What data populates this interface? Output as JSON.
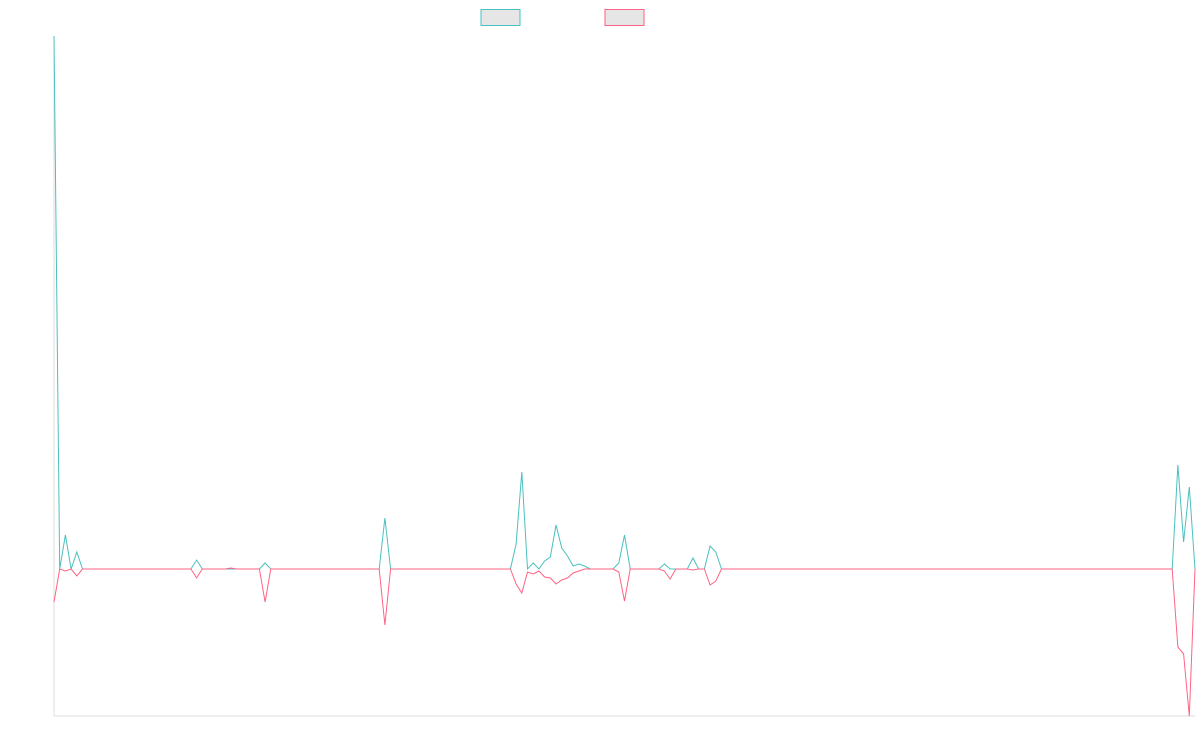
{
  "chart_data": {
    "type": "line",
    "categories": [
      null,
      null,
      null,
      null,
      null,
      null,
      null,
      null,
      null,
      null,
      null,
      null,
      null,
      null,
      null,
      null,
      null,
      null,
      null,
      null,
      null,
      null,
      null,
      null,
      null,
      null,
      null,
      null,
      null,
      null,
      null,
      null,
      null,
      null,
      null,
      null,
      null,
      null,
      null,
      null,
      null,
      null,
      null,
      null,
      null,
      null,
      null,
      null,
      null,
      null,
      null,
      null,
      null,
      null,
      null,
      null,
      null,
      null,
      null,
      null,
      null,
      null,
      null,
      null,
      null,
      null,
      null,
      null,
      null,
      null,
      null,
      null,
      null,
      null,
      null,
      null,
      null,
      null,
      null,
      null,
      null,
      null,
      null,
      null,
      null,
      null,
      null,
      null,
      null,
      null,
      null,
      null,
      null,
      null,
      null,
      null,
      null,
      null,
      null,
      null,
      null,
      null,
      null,
      null,
      null,
      null,
      null,
      null,
      null,
      null,
      null,
      null,
      null,
      null,
      null,
      null,
      null,
      null,
      null,
      null,
      null,
      null,
      null,
      null,
      null,
      null,
      null,
      null,
      null,
      null,
      null,
      null,
      null,
      null,
      null,
      null,
      null,
      null,
      null,
      null,
      null,
      null,
      null,
      null,
      null,
      null,
      null,
      null,
      null,
      null,
      null,
      null,
      null,
      null,
      null,
      null,
      null,
      null,
      null,
      null,
      null,
      null,
      null,
      null,
      null,
      null,
      null,
      null,
      null,
      null,
      null,
      null,
      null,
      null,
      null,
      null,
      null,
      null,
      null,
      null,
      null,
      null,
      null,
      null,
      null,
      null,
      null,
      null,
      null,
      null,
      null,
      null,
      null,
      null,
      null,
      null,
      null,
      null,
      null,
      null,
      null
    ],
    "series": [
      {
        "color": "#4bc0c0",
        "values": [
          533,
          0,
          34,
          0,
          17,
          0,
          0,
          0,
          0,
          0,
          0,
          0,
          0,
          0,
          0,
          0,
          0,
          0,
          0,
          0,
          0,
          0,
          0,
          0,
          0,
          9,
          0,
          0,
          0,
          0,
          0,
          0,
          0,
          0,
          0,
          0,
          0,
          6,
          0,
          0,
          0,
          0,
          0,
          0,
          0,
          0,
          0,
          0,
          0,
          0,
          0,
          0,
          0,
          0,
          0,
          0,
          0,
          0,
          51,
          0,
          0,
          0,
          0,
          0,
          0,
          0,
          0,
          0,
          0,
          0,
          0,
          0,
          0,
          0,
          0,
          0,
          0,
          0,
          0,
          0,
          0,
          25,
          97,
          0,
          6,
          0,
          8,
          12,
          44,
          21,
          13,
          3,
          5,
          3,
          0,
          0,
          0,
          0,
          0,
          6,
          34,
          0,
          0,
          0,
          0,
          0,
          0,
          5,
          0,
          0,
          0,
          0,
          11,
          0,
          0,
          23,
          17,
          0,
          0,
          0,
          0,
          0,
          0,
          0,
          0,
          0,
          0,
          0,
          0,
          0,
          0,
          0,
          0,
          0,
          0,
          0,
          0,
          0,
          0,
          0,
          0,
          0,
          0,
          0,
          0,
          0,
          0,
          0,
          0,
          0,
          0,
          0,
          0,
          0,
          0,
          0,
          0,
          0,
          0,
          0,
          0,
          0,
          0,
          0,
          0,
          0,
          0,
          0,
          0,
          0,
          0,
          0,
          0,
          0,
          0,
          0,
          0,
          0,
          0,
          0,
          0,
          0,
          0,
          0,
          0,
          0,
          0,
          0,
          0,
          0,
          0,
          0,
          0,
          0,
          0,
          0,
          0,
          104,
          27,
          82,
          0
        ]
      },
      {
        "color": "#ff6384",
        "values": [
          -33,
          0,
          -2,
          0,
          -7,
          0,
          0,
          0,
          0,
          0,
          0,
          0,
          0,
          0,
          0,
          0,
          0,
          0,
          0,
          0,
          0,
          0,
          0,
          0,
          0,
          -9,
          0,
          0,
          0,
          0,
          0,
          1,
          0,
          0,
          0,
          0,
          0,
          -33,
          0,
          0,
          0,
          0,
          0,
          0,
          0,
          0,
          0,
          0,
          0,
          0,
          0,
          0,
          0,
          0,
          0,
          0,
          0,
          0,
          -56,
          0,
          0,
          0,
          0,
          0,
          0,
          0,
          0,
          0,
          0,
          0,
          0,
          0,
          0,
          0,
          0,
          0,
          0,
          0,
          0,
          0,
          0,
          -15,
          -24,
          -3,
          -5,
          -2,
          -8,
          -9,
          -15,
          -11,
          -9,
          -4,
          -2,
          0,
          0,
          0,
          0,
          0,
          0,
          -3,
          -32,
          0,
          0,
          0,
          0,
          0,
          0,
          -2,
          -10,
          0,
          0,
          0,
          -1,
          0,
          0,
          -16,
          -12,
          0,
          0,
          0,
          0,
          0,
          0,
          0,
          0,
          0,
          0,
          0,
          0,
          0,
          0,
          0,
          0,
          0,
          0,
          0,
          0,
          0,
          0,
          0,
          0,
          0,
          0,
          0,
          0,
          0,
          0,
          0,
          0,
          0,
          0,
          0,
          0,
          0,
          0,
          0,
          0,
          0,
          0,
          0,
          0,
          0,
          0,
          0,
          0,
          0,
          0,
          0,
          0,
          0,
          0,
          0,
          0,
          0,
          0,
          0,
          0,
          0,
          0,
          0,
          0,
          0,
          0,
          0,
          0,
          0,
          0,
          0,
          0,
          0,
          0,
          0,
          0,
          0,
          0,
          0,
          0,
          -78,
          -85,
          -147,
          0
        ]
      }
    ],
    "ylim": [
      -147,
      533
    ]
  }
}
